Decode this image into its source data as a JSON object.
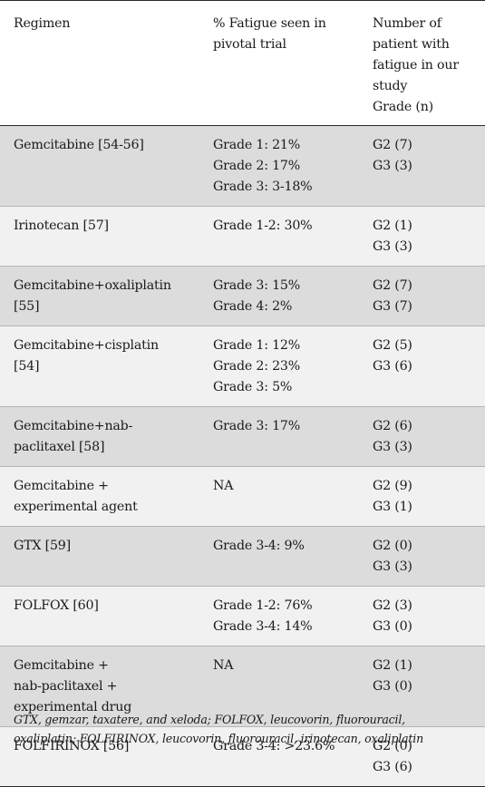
{
  "header": {
    "regimen": "Regimen",
    "fatigue_pivotal": [
      "% Fatigue seen in",
      "pivotal trial"
    ],
    "patients": [
      "Number of",
      "patient with",
      "fatigue in our",
      "study",
      "Grade (n)"
    ]
  },
  "rows": [
    {
      "regimen": [
        "Gemcitabine [54-56]"
      ],
      "pivotal": [
        "Grade 1: 21%",
        "Grade 2: 17%",
        "Grade 3: 3-18%"
      ],
      "study": [
        "G2 (7)",
        "G3 (3)"
      ]
    },
    {
      "regimen": [
        "Irinotecan [57]"
      ],
      "pivotal": [
        "Grade 1-2: 30%"
      ],
      "study": [
        "G2 (1)",
        "G3 (3)"
      ]
    },
    {
      "regimen": [
        "Gemcitabine+oxaliplatin",
        "[55]"
      ],
      "pivotal": [
        "Grade 3: 15%",
        "Grade 4: 2%"
      ],
      "study": [
        "G2 (7)",
        "G3 (7)"
      ]
    },
    {
      "regimen": [
        "Gemcitabine+cisplatin",
        "[54]"
      ],
      "pivotal": [
        "Grade 1: 12%",
        "Grade 2: 23%",
        "Grade 3: 5%"
      ],
      "study": [
        "G2 (5)",
        "G3 (6)"
      ]
    },
    {
      "regimen": [
        "Gemcitabine+nab-",
        "paclitaxel [58]"
      ],
      "pivotal": [
        "Grade 3: 17%"
      ],
      "study": [
        "G2 (6)",
        "G3 (3)"
      ]
    },
    {
      "regimen": [
        "Gemcitabine +",
        "experimental agent"
      ],
      "pivotal": [
        "NA"
      ],
      "study": [
        "G2 (9)",
        "G3 (1)"
      ]
    },
    {
      "regimen": [
        "GTX [59]"
      ],
      "pivotal": [
        "Grade 3-4: 9%"
      ],
      "study": [
        "G2 (0)",
        "G3 (3)"
      ]
    },
    {
      "regimen": [
        "FOLFOX [60]"
      ],
      "pivotal": [
        "Grade 1-2: 76%",
        "Grade 3-4: 14%"
      ],
      "study": [
        "G2 (3)",
        "G3 (0)"
      ]
    },
    {
      "regimen": [
        "Gemcitabine +",
        "nab-paclitaxel +",
        "experimental drug"
      ],
      "pivotal": [
        "NA"
      ],
      "study": [
        "G2 (1)",
        "G3 (0)"
      ]
    },
    {
      "regimen": [
        "FOLFIRINOX [56]"
      ],
      "pivotal": [
        "Grade 3-4: >23.6%"
      ],
      "study": [
        "G2 (0)",
        "G3 (6)"
      ]
    }
  ],
  "footnote": [
    "GTX, gemzar, taxatere, and xeloda; FOLFOX, leucovorin, fluorouracil,",
    "oxaliplatin; FOLFIRINOX, leucovorin, fluorouracil, irinotecan, oxaliplatin"
  ]
}
